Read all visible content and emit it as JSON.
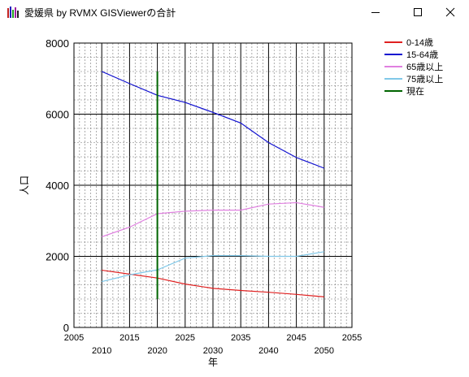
{
  "window": {
    "title": "愛媛県 by RVMX GISViewerの合計",
    "minimize_icon": "minimize-icon",
    "maximize_icon": "maximize-icon",
    "close_icon": "close-icon"
  },
  "chart_data": {
    "type": "line",
    "title": "",
    "xlabel": "年",
    "ylabel": "人口",
    "xlim": [
      2005,
      2055
    ],
    "ylim": [
      0,
      8000
    ],
    "x_ticks": [
      2005,
      2010,
      2015,
      2020,
      2025,
      2030,
      2035,
      2040,
      2045,
      2050,
      2055
    ],
    "y_ticks": [
      0,
      2000,
      4000,
      6000,
      8000
    ],
    "grid": true,
    "legend_position": "top-right",
    "series": [
      {
        "name": "0-14歳",
        "color": "#e02020",
        "points": [
          [
            2010,
            1610
          ],
          [
            2015,
            1500
          ],
          [
            2020,
            1390
          ],
          [
            2025,
            1220
          ],
          [
            2030,
            1100
          ],
          [
            2035,
            1040
          ],
          [
            2040,
            990
          ],
          [
            2045,
            930
          ],
          [
            2050,
            860
          ]
        ]
      },
      {
        "name": "15-64歳",
        "color": "#1010d0",
        "points": [
          [
            2010,
            7200
          ],
          [
            2015,
            6860
          ],
          [
            2020,
            6530
          ],
          [
            2025,
            6330
          ],
          [
            2030,
            6050
          ],
          [
            2035,
            5750
          ],
          [
            2040,
            5200
          ],
          [
            2045,
            4780
          ],
          [
            2050,
            4480
          ]
        ]
      },
      {
        "name": "65歳以上",
        "color": "#e080e0",
        "points": [
          [
            2010,
            2550
          ],
          [
            2015,
            2820
          ],
          [
            2020,
            3200
          ],
          [
            2025,
            3270
          ],
          [
            2030,
            3300
          ],
          [
            2035,
            3300
          ],
          [
            2040,
            3470
          ],
          [
            2045,
            3510
          ],
          [
            2050,
            3380
          ]
        ]
      },
      {
        "name": "75歳以上",
        "color": "#80c8e8",
        "points": [
          [
            2010,
            1290
          ],
          [
            2015,
            1480
          ],
          [
            2020,
            1620
          ],
          [
            2025,
            1950
          ],
          [
            2030,
            2020
          ],
          [
            2035,
            2020
          ],
          [
            2040,
            2000
          ],
          [
            2045,
            2000
          ],
          [
            2050,
            2130
          ]
        ]
      },
      {
        "name": "現在",
        "color": "#006400",
        "points": [
          [
            2020,
            800
          ],
          [
            2020,
            7200
          ]
        ]
      }
    ]
  }
}
